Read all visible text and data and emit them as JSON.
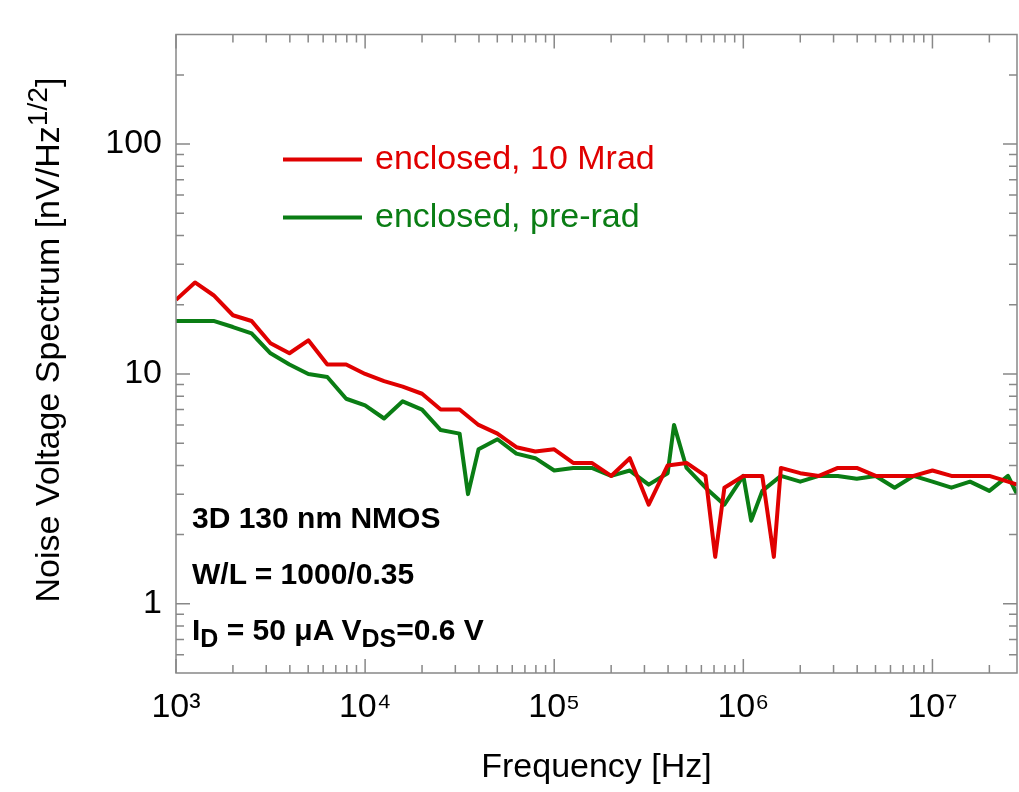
{
  "chart_data": {
    "type": "line",
    "xlabel": "Frequency [Hz]",
    "ylabel": "Noise Voltage Spectrum [nV/Hz$^{1/2}$]",
    "log": "xy",
    "grid": false,
    "legend": "top left",
    "line_style": "solid",
    "marker": "none",
    "xlim": [
      1000,
      28000000
    ],
    "ylim": [
      0.5,
      300
    ],
    "xticks": [
      {
        "value": 1000,
        "label": "10³"
      },
      {
        "value": 2000,
        "label": null
      },
      {
        "value": 3000,
        "label": null
      },
      {
        "value": 4000,
        "label": null
      },
      {
        "value": 5000,
        "label": null
      },
      {
        "value": 6000,
        "label": null
      },
      {
        "value": 7000,
        "label": null
      },
      {
        "value": 8000,
        "label": null
      },
      {
        "value": 9000,
        "label": null
      },
      {
        "value": 10000,
        "label": "10⁴"
      },
      {
        "value": 20000,
        "label": null
      },
      {
        "value": 30000,
        "label": null
      },
      {
        "value": 40000,
        "label": null
      },
      {
        "value": 50000,
        "label": null
      },
      {
        "value": 60000,
        "label": null
      },
      {
        "value": 70000,
        "label": null
      },
      {
        "value": 80000,
        "label": null
      },
      {
        "value": 90000,
        "label": null
      },
      {
        "value": 100000,
        "label": "10⁵"
      },
      {
        "value": 200000,
        "label": null
      },
      {
        "value": 300000,
        "label": null
      },
      {
        "value": 400000,
        "label": null
      },
      {
        "value": 500000,
        "label": null
      },
      {
        "value": 600000,
        "label": null
      },
      {
        "value": 700000,
        "label": null
      },
      {
        "value": 800000,
        "label": null
      },
      {
        "value": 900000,
        "label": null
      },
      {
        "value": 1000000,
        "label": "10⁶"
      },
      {
        "value": 2000000,
        "label": null
      },
      {
        "value": 3000000,
        "label": null
      },
      {
        "value": 4000000,
        "label": null
      },
      {
        "value": 5000000,
        "label": null
      },
      {
        "value": 6000000,
        "label": null
      },
      {
        "value": 7000000,
        "label": null
      },
      {
        "value": 8000000,
        "label": null
      },
      {
        "value": 9000000,
        "label": null
      },
      {
        "value": 10000000,
        "label": "10⁷"
      },
      {
        "value": 20000000,
        "label": null
      }
    ],
    "yticks": [
      {
        "value": 0.6,
        "label": null
      },
      {
        "value": 0.7,
        "label": null
      },
      {
        "value": 0.8,
        "label": null
      },
      {
        "value": 0.9,
        "label": null
      },
      1,
      {
        "value": 2,
        "label": null
      },
      {
        "value": 3,
        "label": null
      },
      {
        "value": 4,
        "label": null
      },
      {
        "value": 5,
        "label": null
      },
      {
        "value": 6,
        "label": null
      },
      {
        "value": 7,
        "label": null
      },
      {
        "value": 8,
        "label": null
      },
      {
        "value": 9,
        "label": null
      },
      10,
      {
        "value": 20,
        "label": null
      },
      {
        "value": 30,
        "label": null
      },
      {
        "value": 40,
        "label": null
      },
      {
        "value": 50,
        "label": null
      },
      {
        "value": 60,
        "label": null
      },
      {
        "value": 70,
        "label": null
      },
      {
        "value": 80,
        "label": null
      },
      {
        "value": 90,
        "label": null
      },
      100,
      {
        "value": 200,
        "label": null
      }
    ],
    "series": [
      {
        "name": "enclosed, 10 Mrad",
        "color": "#e00000",
        "x": [
          1000,
          1260,
          1580,
          2000,
          2510,
          3160,
          3980,
          5010,
          6310,
          7940,
          10000,
          12600,
          15800,
          20000,
          25100,
          31600,
          39800,
          50100,
          63100,
          79400,
          100000,
          126000,
          158000,
          200000,
          251000,
          316000,
          398000,
          501000,
          631000,
          710000,
          794000,
          1000000,
          1260000,
          1450000,
          1580000,
          2000000,
          2510000,
          3160000,
          3980000,
          5010000,
          6310000,
          7940000,
          10000000,
          12600000,
          15800000,
          20000000,
          25100000,
          28000000
        ],
        "values": [
          21,
          25,
          22,
          18,
          17,
          13.6,
          12.3,
          14,
          11,
          11,
          10,
          9.3,
          8.8,
          8.2,
          7,
          7,
          6,
          5.5,
          4.8,
          4.6,
          4.7,
          4.1,
          4.1,
          3.6,
          4.3,
          2.7,
          4.0,
          4.1,
          3.6,
          1.6,
          3.2,
          3.6,
          3.6,
          1.6,
          3.9,
          3.7,
          3.6,
          3.9,
          3.9,
          3.6,
          3.6,
          3.6,
          3.8,
          3.6,
          3.6,
          3.6,
          3.4,
          3.3
        ]
      },
      {
        "name": "enclosed, pre-rad",
        "color": "#0a7d14",
        "x": [
          1000,
          1260,
          1580,
          2000,
          2510,
          3160,
          3980,
          5010,
          6310,
          7940,
          10000,
          12600,
          15800,
          20000,
          25100,
          31600,
          35000,
          39800,
          50100,
          63100,
          79400,
          100000,
          126000,
          158000,
          200000,
          251000,
          316000,
          398000,
          430000,
          501000,
          631000,
          794000,
          1000000,
          1100000,
          1260000,
          1580000,
          2000000,
          2510000,
          3160000,
          3980000,
          5010000,
          6310000,
          7940000,
          10000000,
          12600000,
          15800000,
          20000000,
          25100000,
          28000000
        ],
        "values": [
          17,
          17,
          17,
          16,
          15,
          12.3,
          11,
          10,
          9.7,
          7.8,
          7.3,
          6.4,
          7.6,
          7.0,
          5.7,
          5.5,
          3.0,
          4.7,
          5.2,
          4.5,
          4.3,
          3.8,
          3.9,
          3.9,
          3.6,
          3.8,
          3.3,
          3.7,
          6.0,
          3.9,
          3.2,
          2.7,
          3.6,
          2.3,
          3.1,
          3.6,
          3.4,
          3.6,
          3.6,
          3.5,
          3.6,
          3.2,
          3.6,
          3.4,
          3.2,
          3.4,
          3.1,
          3.6,
          3.0
        ]
      }
    ],
    "annotations": [
      "3D 130 nm NMOS",
      "W/L = 1000/0.35",
      "I$_{D}$ = 50 μA  V$_{DS}$=0.6 V"
    ]
  }
}
